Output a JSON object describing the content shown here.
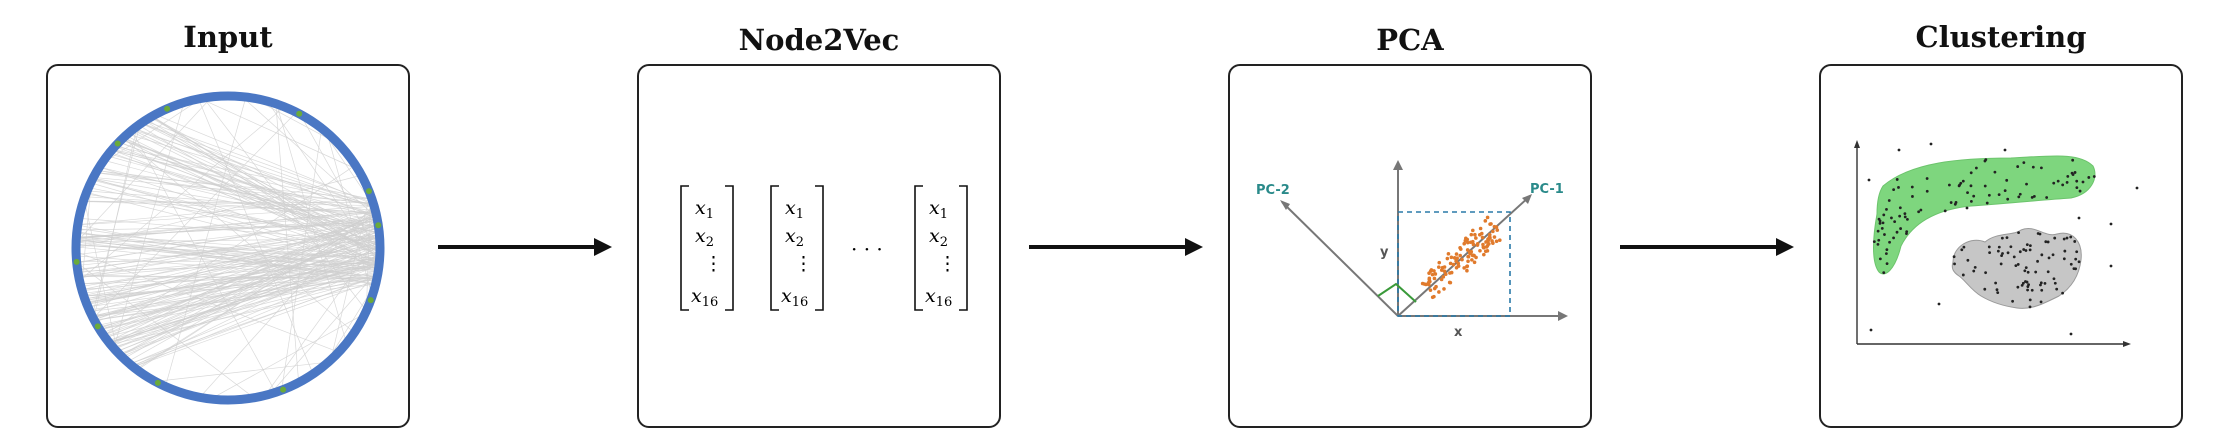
{
  "stages": [
    {
      "title": "Input"
    },
    {
      "title": "Node2Vec"
    },
    {
      "title": "PCA"
    },
    {
      "title": "Clustering"
    }
  ],
  "node2vec": {
    "vectors": [
      {
        "entries": [
          "x1",
          "x2",
          "⋮",
          "x16"
        ]
      },
      {
        "entries": [
          "x1",
          "x2",
          "⋮",
          "x16"
        ]
      },
      {
        "entries": [
          "x1",
          "x2",
          "⋮",
          "x16"
        ]
      }
    ],
    "ellipsis": "· · ·"
  },
  "pca": {
    "pc1_label": "PC-1",
    "pc2_label": "PC-2",
    "x_label": "x",
    "y_label": "y"
  },
  "colors": {
    "node_ring": "#4a77c4",
    "node_accent": "#6aaa3a",
    "edges": "#d0d0d0",
    "pca_points": "#e07a2c",
    "pca_accent": "#2a8a8a",
    "cluster_a": "#7ed67e",
    "cluster_b": "#c6c6c6"
  }
}
